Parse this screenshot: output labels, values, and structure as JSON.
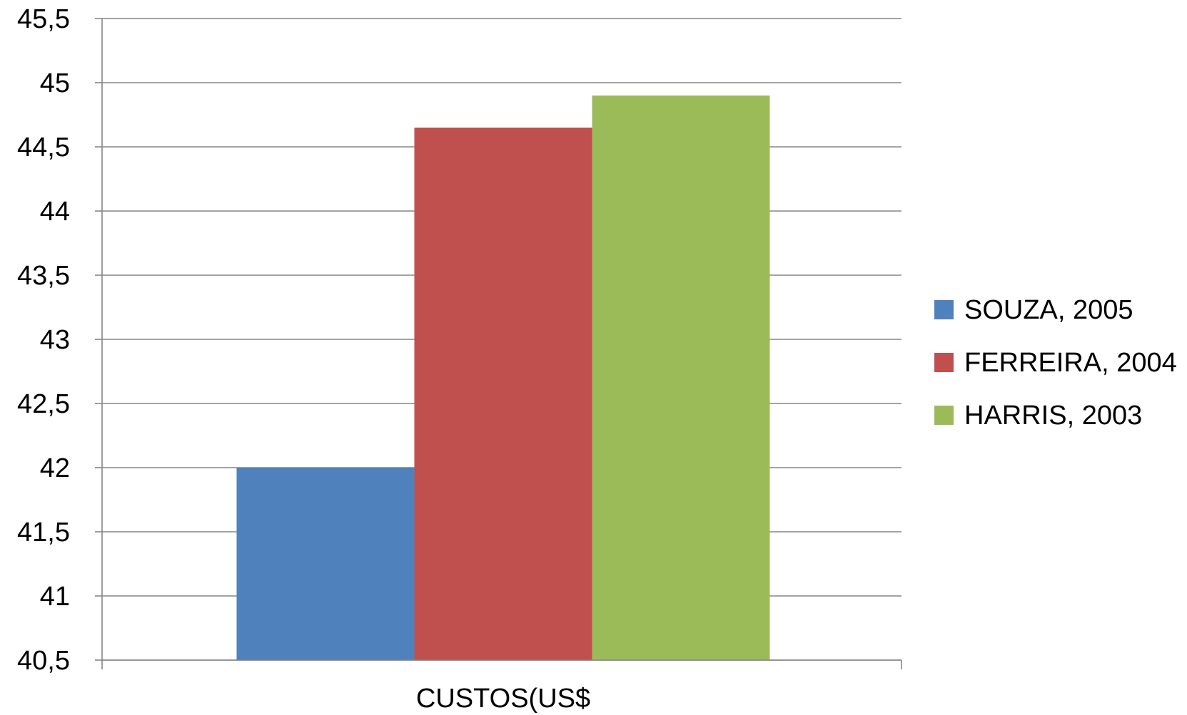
{
  "chart_data": {
    "type": "bar",
    "title": "",
    "xlabel": "",
    "ylabel": "",
    "categories": [
      "CUSTOS(US$"
    ],
    "series": [
      {
        "name": "SOUZA, 2005",
        "values": [
          42.0
        ],
        "color": "#4F81BD"
      },
      {
        "name": "FERREIRA, 2004",
        "values": [
          44.65
        ],
        "color": "#C0504D"
      },
      {
        "name": "HARRIS, 2003",
        "values": [
          44.9
        ],
        "color": "#9BBB59"
      }
    ],
    "ylim": [
      40.5,
      45.5
    ],
    "yticks": [
      "40,5",
      "41",
      "41,5",
      "42",
      "42,5",
      "43",
      "43,5",
      "44",
      "44,5",
      "45",
      "45,5"
    ],
    "grid": true,
    "legend_position": "right",
    "colors": {
      "axis": "#868686",
      "grid": "#868686"
    }
  }
}
